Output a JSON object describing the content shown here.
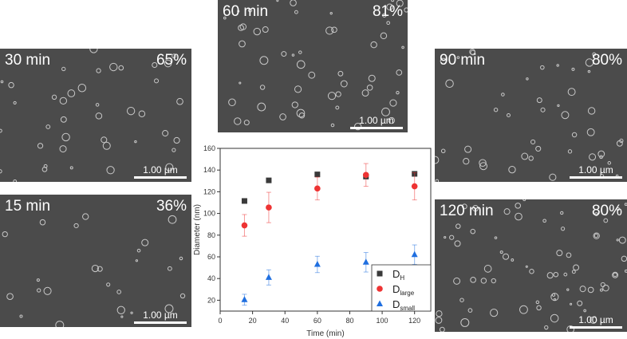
{
  "panels": [
    {
      "id": "p30",
      "time": "30 min",
      "percent": "65%",
      "scale": "1.00 µm"
    },
    {
      "id": "p15",
      "time": "15 min",
      "percent": "36%",
      "scale": "1.00 µm"
    },
    {
      "id": "p60",
      "time": "60 min",
      "percent": "81%",
      "scale": "1.00 µm"
    },
    {
      "id": "p90",
      "time": "90 min",
      "percent": "80%",
      "scale": "1.00 µm"
    },
    {
      "id": "p120",
      "time": "120 min",
      "percent": "80%",
      "scale": "1.00 µm"
    }
  ],
  "chart_data": {
    "type": "scatter",
    "xlabel": "Time (min)",
    "ylabel": "Diameter (nm)",
    "xlim": [
      0,
      130
    ],
    "ylim": [
      10,
      160
    ],
    "xticks": [
      0,
      20,
      40,
      60,
      80,
      100,
      120
    ],
    "yticks": [
      20,
      40,
      60,
      80,
      100,
      120,
      140,
      160
    ],
    "legend_position": "bottom-right",
    "x": [
      15,
      30,
      60,
      90,
      120
    ],
    "series": [
      {
        "name": "D",
        "sub": "H",
        "marker": "square",
        "color": "#3a3a3a",
        "values": [
          111.5,
          130.5,
          136,
          134,
          136.5
        ],
        "errors": [
          0,
          0,
          0,
          0,
          0
        ]
      },
      {
        "name": "D",
        "sub": "large",
        "marker": "circle",
        "color": "#ee3333",
        "values": [
          89,
          105.5,
          123,
          135.5,
          125
        ],
        "errors": [
          10,
          14,
          10.5,
          10.5,
          12.5
        ]
      },
      {
        "name": "D",
        "sub": "small",
        "marker": "triangle",
        "color": "#1f6fe0",
        "values": [
          20.5,
          41,
          53,
          55,
          62
        ],
        "errors": [
          5,
          7,
          7.5,
          9,
          9
        ]
      }
    ]
  }
}
